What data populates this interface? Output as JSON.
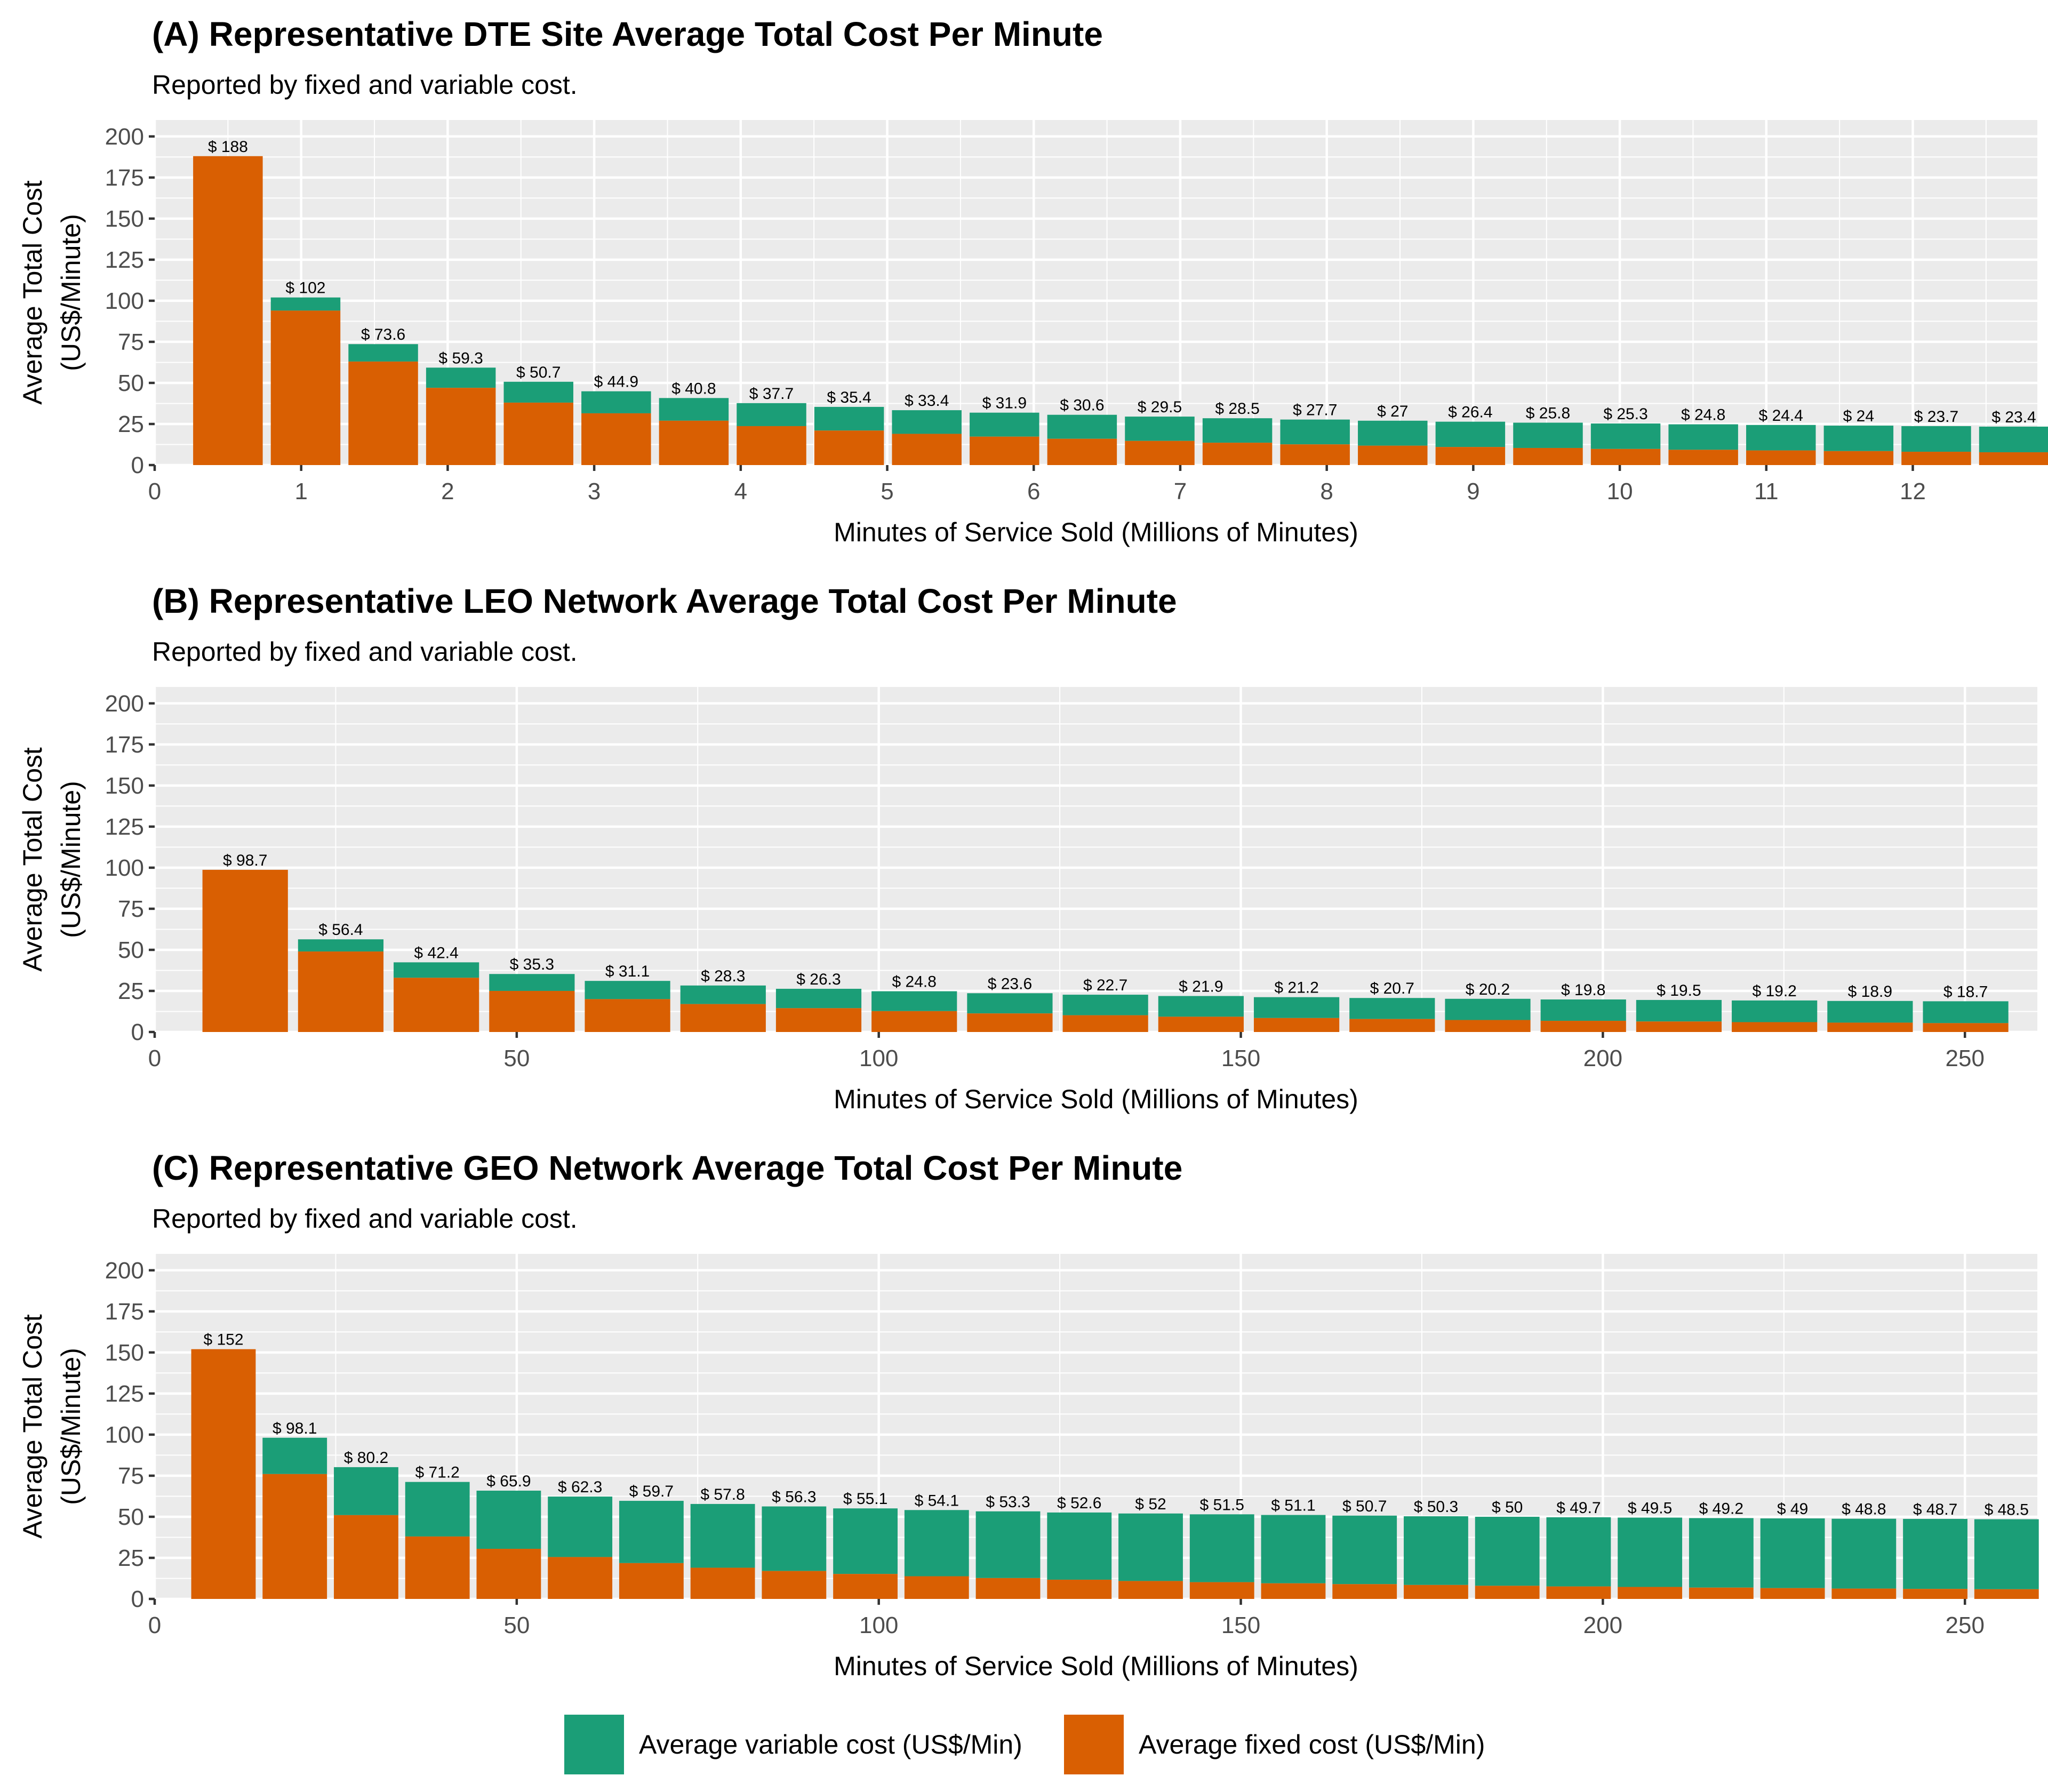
{
  "colors": {
    "variable": "#1b9e77",
    "fixed": "#d95f02",
    "panel": "#ebebeb",
    "grid": "#ffffff"
  },
  "legend": {
    "variable_label": "Average variable cost (US$/Min)",
    "fixed_label": "Average fixed cost (US$/Min)"
  },
  "chart_data": [
    {
      "type": "bar",
      "stacked": true,
      "title": "(A) Representative DTE Site Average Total Cost Per Minute",
      "subtitle": "Reported by fixed and variable cost.",
      "xlabel": "Minutes of Service Sold (Millions of Minutes)",
      "ylabel": [
        "Average Total Cost",
        "(US$/Minute)"
      ],
      "xlim": [
        0,
        12.85
      ],
      "ylim": [
        0,
        210
      ],
      "xticks": [
        0,
        1,
        2,
        3,
        4,
        5,
        6,
        7,
        8,
        9,
        10,
        11,
        12
      ],
      "yticks": [
        0,
        25,
        50,
        75,
        100,
        125,
        150,
        175,
        200
      ],
      "bar_width": 0.475,
      "x": [
        0.5,
        1.03,
        1.56,
        2.09,
        2.62,
        3.15,
        3.68,
        4.21,
        4.74,
        5.27,
        5.8,
        6.33,
        6.86,
        7.39,
        7.92,
        8.45,
        8.98,
        9.51,
        10.04,
        10.57,
        11.1,
        11.63,
        12.16,
        12.69
      ],
      "total": [
        188,
        102,
        73.6,
        59.3,
        50.7,
        44.9,
        40.8,
        37.7,
        35.4,
        33.4,
        31.9,
        30.6,
        29.5,
        28.5,
        27.7,
        27,
        26.4,
        25.8,
        25.3,
        24.8,
        24.4,
        24,
        23.7,
        23.4
      ],
      "fixed": [
        188,
        94,
        63,
        47,
        38,
        31.5,
        27,
        23.7,
        21,
        19,
        17.3,
        16,
        14.7,
        13.6,
        12.6,
        11.8,
        11,
        10.4,
        9.8,
        9.3,
        8.9,
        8.5,
        8.1,
        7.8
      ],
      "labels": [
        "$ 188",
        "$ 102",
        "$ 73.6",
        "$ 59.3",
        "$ 50.7",
        "$ 44.9",
        "$ 40.8",
        "$ 37.7",
        "$ 35.4",
        "$ 33.4",
        "$ 31.9",
        "$ 30.6",
        "$ 29.5",
        "$ 28.5",
        "$ 27.7",
        "$ 27",
        "$ 26.4",
        "$ 25.8",
        "$ 25.3",
        "$ 24.8",
        "$ 24.4",
        "$ 24",
        "$ 23.7",
        "$ 23.4"
      ]
    },
    {
      "type": "bar",
      "stacked": true,
      "title": "(B) Representative LEO Network Average Total Cost Per Minute",
      "subtitle": "Reported by fixed and variable cost.",
      "xlabel": "Minutes of Service Sold (Millions of Minutes)",
      "ylabel": [
        "Average Total Cost",
        "(US$/Minute)"
      ],
      "xlim": [
        0,
        260
      ],
      "ylim": [
        0,
        210
      ],
      "xticks": [
        0,
        50,
        100,
        150,
        200,
        250
      ],
      "yticks": [
        0,
        25,
        50,
        75,
        100,
        125,
        150,
        175,
        200
      ],
      "bar_width": 11.8,
      "x": [
        12.5,
        25.7,
        38.9,
        52.1,
        65.3,
        78.5,
        91.7,
        104.9,
        118.1,
        131.3,
        144.5,
        157.7,
        170.9,
        184.1,
        197.3,
        210.5,
        223.7,
        236.9,
        250.1
      ],
      "total": [
        98.7,
        56.4,
        42.4,
        35.3,
        31.1,
        28.3,
        26.3,
        24.8,
        23.6,
        22.7,
        21.9,
        21.2,
        20.7,
        20.2,
        19.8,
        19.5,
        19.2,
        18.9,
        18.7
      ],
      "fixed": [
        98.7,
        49,
        33,
        25,
        20,
        17,
        14.5,
        12.7,
        11.3,
        10.2,
        9.3,
        8.5,
        7.9,
        7.3,
        6.8,
        6.4,
        6,
        5.7,
        5.4
      ],
      "labels": [
        "$ 98.7",
        "$ 56.4",
        "$ 42.4",
        "$ 35.3",
        "$ 31.1",
        "$ 28.3",
        "$ 26.3",
        "$ 24.8",
        "$ 23.6",
        "$ 22.7",
        "$ 21.9",
        "$ 21.2",
        "$ 20.7",
        "$ 20.2",
        "$ 19.8",
        "$ 19.5",
        "$ 19.2",
        "$ 18.9",
        "$ 18.7"
      ]
    },
    {
      "type": "bar",
      "stacked": true,
      "title": "(C) Representative GEO Network Average Total Cost Per Minute",
      "subtitle": "Reported by fixed and variable cost.",
      "xlabel": "Minutes of Service Sold (Millions of Minutes)",
      "ylabel": [
        "Average Total Cost",
        "(US$/Minute)"
      ],
      "xlim": [
        0,
        260
      ],
      "ylim": [
        0,
        210
      ],
      "xticks": [
        0,
        50,
        100,
        150,
        200,
        250
      ],
      "yticks": [
        0,
        25,
        50,
        75,
        100,
        125,
        150,
        175,
        200
      ],
      "bar_width": 8.9,
      "x": [
        9.5,
        19.35,
        29.2,
        39.05,
        48.9,
        58.75,
        68.6,
        78.45,
        88.3,
        98.15,
        108,
        117.85,
        127.7,
        137.55,
        147.4,
        157.25,
        167.1,
        176.95,
        186.8,
        196.65,
        206.5,
        216.35,
        226.2,
        236.05,
        245.9,
        255.75
      ],
      "total": [
        152,
        98.1,
        80.2,
        71.2,
        65.9,
        62.3,
        59.7,
        57.8,
        56.3,
        55.1,
        54.1,
        53.3,
        52.6,
        52,
        51.5,
        51.1,
        50.7,
        50.3,
        50,
        49.7,
        49.5,
        49.2,
        49,
        48.8,
        48.7,
        48.5
      ],
      "fixed": [
        152,
        76,
        51,
        38,
        30.5,
        25.5,
        21.8,
        19,
        17,
        15.2,
        13.8,
        12.7,
        11.7,
        10.9,
        10.2,
        9.5,
        9,
        8.5,
        8,
        7.6,
        7.3,
        6.9,
        6.6,
        6.3,
        6.1,
        5.9
      ],
      "labels": [
        "$ 152",
        "$ 98.1",
        "$ 80.2",
        "$ 71.2",
        "$ 65.9",
        "$ 62.3",
        "$ 59.7",
        "$ 57.8",
        "$ 56.3",
        "$ 55.1",
        "$ 54.1",
        "$ 53.3",
        "$ 52.6",
        "$ 52",
        "$ 51.5",
        "$ 51.1",
        "$ 50.7",
        "$ 50.3",
        "$ 50",
        "$ 49.7",
        "$ 49.5",
        "$ 49.2",
        "$ 49",
        "$ 48.8",
        "$ 48.7",
        "$ 48.5"
      ]
    }
  ]
}
